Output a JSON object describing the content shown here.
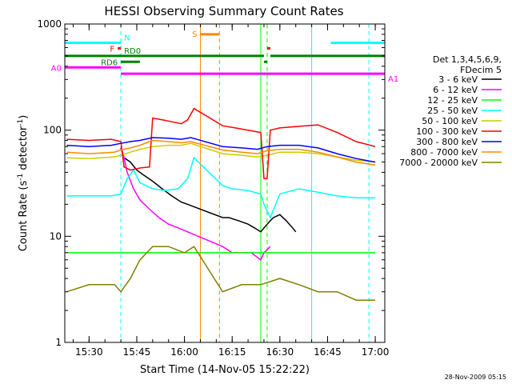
{
  "chart_data": {
    "type": "line",
    "title": "HESSI Observing Summary Count Rates",
    "xlabel": "Start Time (14-Nov-05 15:22:22)",
    "ylabel_main": "Count Rate (s",
    "ylabel_sup1": "-1",
    "ylabel_mid": " detector",
    "ylabel_sup2": "-1",
    "ylabel_end": ")",
    "yscale": "log",
    "ylim": [
      1,
      1000
    ],
    "xlim": [
      "15:22:22",
      "17:03:00"
    ],
    "x_ticks": [
      "15:30",
      "15:45",
      "16:00",
      "16:15",
      "16:30",
      "16:45",
      "17:00"
    ],
    "y_ticks": [
      {
        "label": "1",
        "value": 1
      },
      {
        "label": "10",
        "value": 10
      },
      {
        "label": "100",
        "value": 100
      },
      {
        "label": "1000",
        "value": 1000
      }
    ],
    "legend_header": [
      "Det 1,3,4,5,6,9,",
      "FDecim 5"
    ],
    "legend_position": "right",
    "series": [
      {
        "name": "3 - 6 keV",
        "color": "#000000",
        "points": [
          [
            "15:40",
            68
          ],
          [
            "15:41",
            55
          ],
          [
            "15:43",
            50
          ],
          [
            "15:45",
            42
          ],
          [
            "15:47",
            38
          ],
          [
            "15:50",
            33
          ],
          [
            "15:53",
            28
          ],
          [
            "15:56",
            24
          ],
          [
            "15:59",
            21
          ],
          [
            "16:01",
            20
          ],
          [
            "16:12",
            15
          ],
          [
            "16:14",
            15
          ],
          [
            "16:17",
            14
          ],
          [
            "16:20",
            13
          ],
          [
            "16:22",
            12
          ],
          [
            "16:24",
            11
          ],
          [
            "16:25",
            12
          ],
          [
            "16:27",
            14
          ],
          [
            "16:28",
            15
          ],
          [
            "16:30",
            16
          ],
          [
            "16:32",
            14
          ],
          [
            "16:34",
            12
          ],
          [
            "16:35",
            11
          ]
        ]
      },
      {
        "name": "6 - 12 keV",
        "color": "#ff00ff",
        "points": [
          [
            "15:40",
            70
          ],
          [
            "15:41",
            55
          ],
          [
            "15:42",
            40
          ],
          [
            "15:44",
            28
          ],
          [
            "15:46",
            22
          ],
          [
            "15:49",
            18
          ],
          [
            "15:52",
            15
          ],
          [
            "15:55",
            13
          ],
          [
            "15:58",
            12
          ],
          [
            "16:01",
            11
          ],
          [
            "16:12",
            8
          ],
          [
            "16:15",
            7
          ],
          [
            "16:18",
            7
          ],
          [
            "16:21",
            7
          ],
          [
            "16:24",
            6
          ],
          [
            "16:25",
            7
          ],
          [
            "16:27",
            8
          ]
        ]
      },
      {
        "name": "12 - 25 keV",
        "color": "#00ff00",
        "points": [
          [
            "15:23",
            7
          ],
          [
            "15:30",
            7
          ],
          [
            "15:38",
            7
          ],
          [
            "15:40",
            7
          ],
          [
            "15:43",
            7
          ],
          [
            "15:46",
            7
          ],
          [
            "15:50",
            7
          ],
          [
            "15:55",
            7
          ],
          [
            "16:00",
            7
          ],
          [
            "16:03",
            7
          ],
          [
            "16:12",
            7
          ],
          [
            "16:18",
            7
          ],
          [
            "16:24",
            7
          ],
          [
            "16:30",
            7
          ],
          [
            "16:36",
            7
          ],
          [
            "16:42",
            7
          ],
          [
            "16:48",
            7
          ],
          [
            "16:54",
            7
          ],
          [
            "17:00",
            7
          ]
        ]
      },
      {
        "name": "25 - 50 keV",
        "color": "#00ffff",
        "points": [
          [
            "15:23",
            24
          ],
          [
            "15:30",
            24
          ],
          [
            "15:37",
            24
          ],
          [
            "15:40",
            25
          ],
          [
            "15:42",
            35
          ],
          [
            "15:44",
            42
          ],
          [
            "15:46",
            32
          ],
          [
            "15:50",
            28
          ],
          [
            "15:54",
            27
          ],
          [
            "15:58",
            28
          ],
          [
            "16:01",
            35
          ],
          [
            "16:03",
            55
          ],
          [
            "16:12",
            30
          ],
          [
            "16:15",
            28
          ],
          [
            "16:20",
            27
          ],
          [
            "16:24",
            25
          ],
          [
            "16:25",
            20
          ],
          [
            "16:27",
            15
          ],
          [
            "16:30",
            25
          ],
          [
            "16:36",
            28
          ],
          [
            "16:42",
            26
          ],
          [
            "16:48",
            24
          ],
          [
            "16:54",
            23
          ],
          [
            "17:00",
            23
          ]
        ]
      },
      {
        "name": "50 - 100 keV",
        "color": "#cccc00",
        "points": [
          [
            "15:23",
            55
          ],
          [
            "15:30",
            54
          ],
          [
            "15:38",
            56
          ],
          [
            "15:40",
            58
          ],
          [
            "15:43",
            62
          ],
          [
            "15:46",
            66
          ],
          [
            "15:50",
            70
          ],
          [
            "15:55",
            72
          ],
          [
            "15:59",
            72
          ],
          [
            "16:02",
            75
          ],
          [
            "16:12",
            60
          ],
          [
            "16:18",
            58
          ],
          [
            "16:23",
            56
          ],
          [
            "16:26",
            58
          ],
          [
            "16:30",
            62
          ],
          [
            "16:36",
            62
          ],
          [
            "16:42",
            60
          ],
          [
            "16:48",
            56
          ],
          [
            "16:54",
            52
          ],
          [
            "17:00",
            50
          ]
        ]
      },
      {
        "name": "100 - 300 keV",
        "color": "#ff0000",
        "points": [
          [
            "15:23",
            82
          ],
          [
            "15:30",
            80
          ],
          [
            "15:37",
            82
          ],
          [
            "15:40",
            78
          ],
          [
            "15:41",
            45
          ],
          [
            "15:43",
            42
          ],
          [
            "15:46",
            44
          ],
          [
            "15:49",
            45
          ],
          [
            "15:50",
            130
          ],
          [
            "15:53",
            125
          ],
          [
            "15:56",
            120
          ],
          [
            "15:59",
            115
          ],
          [
            "16:01",
            125
          ],
          [
            "16:03",
            160
          ],
          [
            "16:12",
            110
          ],
          [
            "16:16",
            105
          ],
          [
            "16:20",
            100
          ],
          [
            "16:24",
            95
          ],
          [
            "16:25",
            35
          ],
          [
            "16:26",
            35
          ],
          [
            "16:27",
            100
          ],
          [
            "16:30",
            105
          ],
          [
            "16:35",
            108
          ],
          [
            "16:42",
            112
          ],
          [
            "16:48",
            95
          ],
          [
            "16:54",
            78
          ],
          [
            "17:00",
            70
          ]
        ]
      },
      {
        "name": "300 - 800 keV",
        "color": "#0000ff",
        "points": [
          [
            "15:23",
            72
          ],
          [
            "15:30",
            70
          ],
          [
            "15:37",
            72
          ],
          [
            "15:40",
            75
          ],
          [
            "15:43",
            78
          ],
          [
            "15:46",
            80
          ],
          [
            "15:50",
            85
          ],
          [
            "15:55",
            84
          ],
          [
            "15:59",
            82
          ],
          [
            "16:02",
            85
          ],
          [
            "16:12",
            70
          ],
          [
            "16:18",
            68
          ],
          [
            "16:23",
            66
          ],
          [
            "16:26",
            70
          ],
          [
            "16:30",
            72
          ],
          [
            "16:36",
            72
          ],
          [
            "16:42",
            68
          ],
          [
            "16:48",
            60
          ],
          [
            "16:54",
            54
          ],
          [
            "17:00",
            50
          ]
        ]
      },
      {
        "name": "800 - 7000 keV",
        "color": "#ff8800",
        "points": [
          [
            "15:23",
            62
          ],
          [
            "15:30",
            60
          ],
          [
            "15:38",
            62
          ],
          [
            "15:40",
            65
          ],
          [
            "15:43",
            68
          ],
          [
            "15:46",
            72
          ],
          [
            "15:50",
            80
          ],
          [
            "15:55",
            78
          ],
          [
            "15:59",
            76
          ],
          [
            "16:02",
            78
          ],
          [
            "16:12",
            65
          ],
          [
            "16:18",
            62
          ],
          [
            "16:23",
            60
          ],
          [
            "16:26",
            64
          ],
          [
            "16:30",
            66
          ],
          [
            "16:36",
            66
          ],
          [
            "16:42",
            62
          ],
          [
            "16:48",
            56
          ],
          [
            "16:54",
            50
          ],
          [
            "17:00",
            47
          ]
        ]
      },
      {
        "name": "7000 - 20000 keV",
        "color": "#808000",
        "points": [
          [
            "15:23",
            3
          ],
          [
            "15:30",
            3.5
          ],
          [
            "15:38",
            3.5
          ],
          [
            "15:40",
            3
          ],
          [
            "15:43",
            4
          ],
          [
            "15:46",
            6
          ],
          [
            "15:50",
            8
          ],
          [
            "15:55",
            8
          ],
          [
            "16:00",
            7
          ],
          [
            "16:03",
            8
          ],
          [
            "16:12",
            3
          ],
          [
            "16:18",
            3.5
          ],
          [
            "16:24",
            3.5
          ],
          [
            "16:30",
            4
          ],
          [
            "16:36",
            3.5
          ],
          [
            "16:42",
            3
          ],
          [
            "16:48",
            3
          ],
          [
            "16:54",
            2.5
          ],
          [
            "17:00",
            2.5
          ]
        ]
      }
    ],
    "flag_bars": [
      {
        "label": "N",
        "color": "#00ffff",
        "y_pos": 665,
        "segments": [
          [
            "15:22:22",
            "15:40"
          ],
          [
            "16:46",
            "17:03"
          ]
        ]
      },
      {
        "label": "F",
        "color": "#ff0000",
        "y_pos": 590,
        "segments": [
          [
            "15:39",
            "15:40"
          ]
        ]
      },
      {
        "label": "RD0",
        "color": "#008000",
        "y_pos": 500,
        "segments": [
          [
            "15:22:22",
            "16:25"
          ],
          [
            "16:27",
            "17:03"
          ]
        ]
      },
      {
        "label": "RD6",
        "color": "#008000",
        "y_pos": 440,
        "segments": [
          [
            "15:40",
            "15:46"
          ],
          [
            "16:25",
            "16:26"
          ]
        ]
      },
      {
        "label": "A0",
        "color": "#ff00ff",
        "y_pos": 390,
        "segments": [
          [
            "15:22:22",
            "15:40"
          ]
        ]
      },
      {
        "label": "A1",
        "color": "#ff00ff",
        "y_pos": 340,
        "segments": [
          [
            "15:40",
            "17:03"
          ]
        ]
      },
      {
        "label": "S",
        "color": "#ff8800",
        "y_pos": 800,
        "segments": [
          [
            "16:05",
            "16:11"
          ]
        ]
      }
    ],
    "extra_marks": [
      {
        "color": "#ff0000",
        "y_pos": 590,
        "segments": [
          [
            "16:26",
            "16:27"
          ]
        ]
      }
    ],
    "vertical_lines": [
      {
        "x": "15:22:22",
        "color": "#00ffff",
        "style": "solid"
      },
      {
        "x": "15:40",
        "color": "#00ffff",
        "style": "dashed"
      },
      {
        "x": "16:05",
        "color": "#ff8800",
        "style": "solid"
      },
      {
        "x": "16:11",
        "color": "#ff8800",
        "style": "dashed"
      },
      {
        "x": "16:24",
        "color": "#00ff00",
        "style": "solid"
      },
      {
        "x": "16:26",
        "color": "#00ff00",
        "style": "dashed"
      },
      {
        "x": "16:40",
        "color": "#00ffff",
        "style": "solid"
      },
      {
        "x": "16:58",
        "color": "#00ffff",
        "style": "dashed"
      }
    ],
    "timestamp": "28-Nov-2009 05:15"
  }
}
